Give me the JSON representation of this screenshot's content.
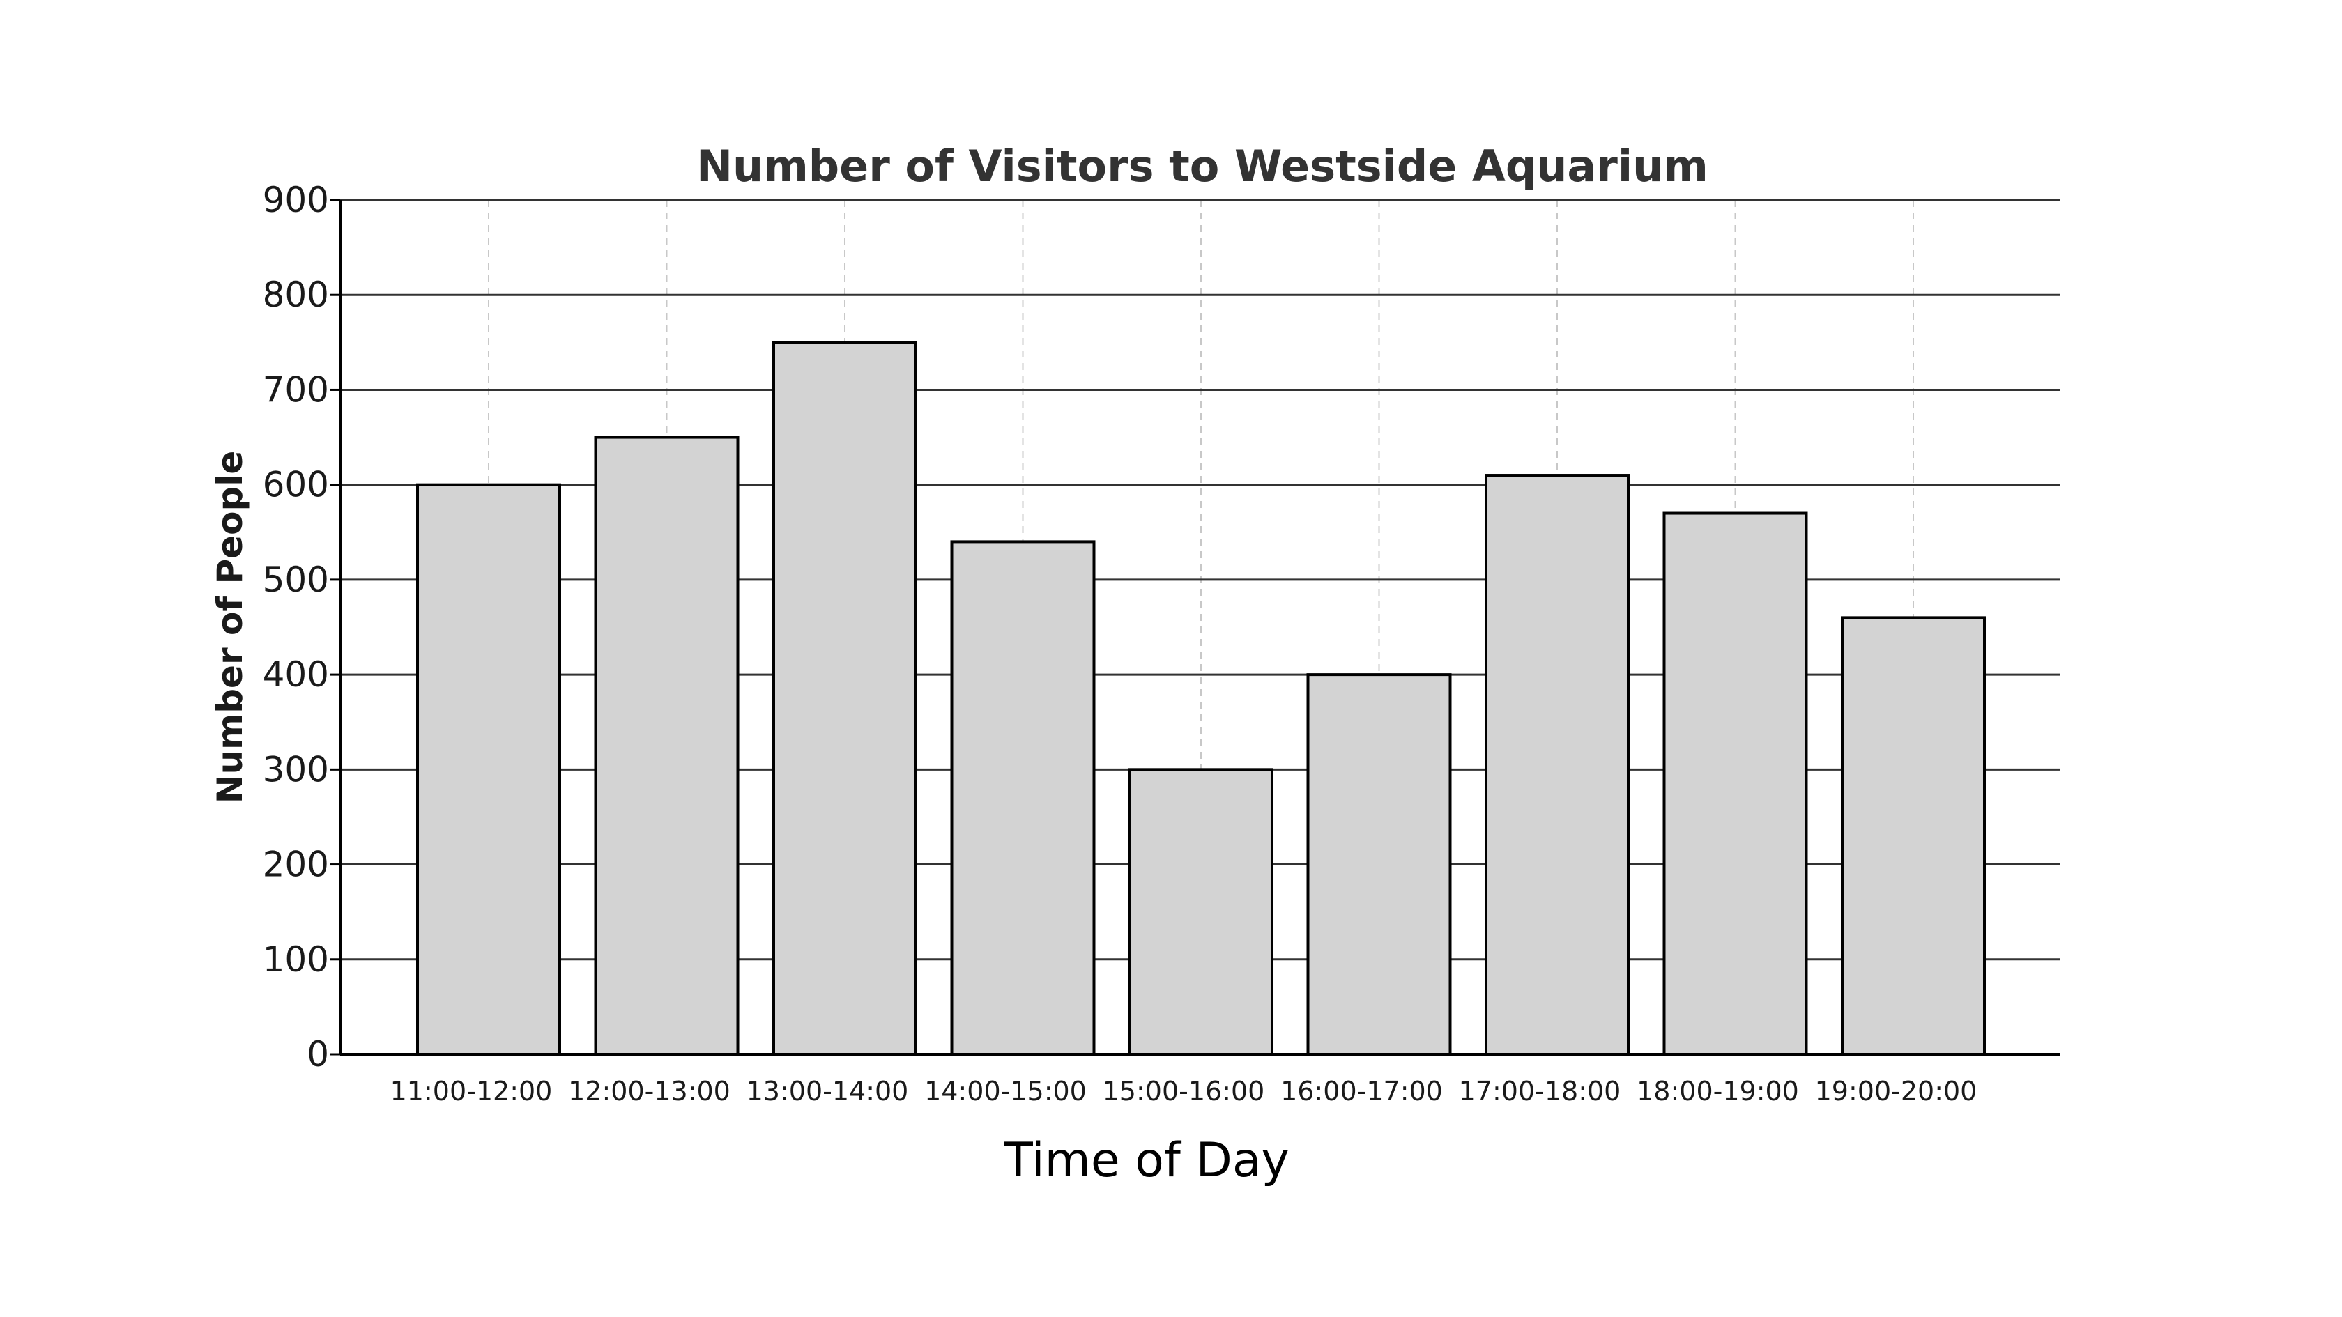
{
  "chart_data": {
    "type": "bar",
    "title": "Number of Visitors to Westside Aquarium",
    "xlabel": "Time of Day",
    "ylabel": "Number of People",
    "categories": [
      "11:00-12:00",
      "12:00-13:00",
      "13:00-14:00",
      "14:00-15:00",
      "15:00-16:00",
      "16:00-17:00",
      "17:00-18:00",
      "18:00-19:00",
      "19:00-20:00"
    ],
    "values": [
      600,
      650,
      750,
      540,
      300,
      400,
      610,
      570,
      460
    ],
    "ylim": [
      0,
      900
    ],
    "yticks": [
      0,
      100,
      200,
      300,
      400,
      500,
      600,
      700,
      800,
      900
    ],
    "grid": "horizontal solid, vertical dashed",
    "legend": "none",
    "colors": {
      "bar_fill": "#d3d3d3",
      "bar_edge": "#000000",
      "grid_major": "#333333",
      "grid_minor": "#c8c8c8",
      "title": "#333333"
    }
  }
}
